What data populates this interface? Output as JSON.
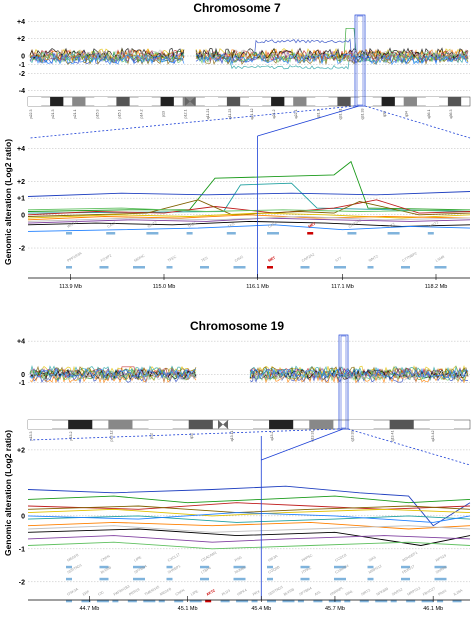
{
  "colors": {
    "highlight": "#1b3fd6",
    "grid": "#b8b8b8",
    "gene_track": "#7fb3dc",
    "target_gene": "#cc0000",
    "series_palette": [
      "#1a9a1a",
      "#e0c000",
      "#2040c0",
      "#c02020",
      "#20a0a0",
      "#ff8000",
      "#806000",
      "#8040a0",
      "#000000",
      "#60c060",
      "#c0c0c0",
      "#2080ff"
    ]
  },
  "chart_data": [
    {
      "type": "line",
      "title": "Chromosome 7",
      "panel": "whole-chromosome",
      "ylabel": "",
      "ylim": [
        -4.5,
        4.5
      ],
      "yticks": [
        "+4",
        "+2",
        "0",
        "-1",
        "-2",
        "-4"
      ],
      "ytick_values": [
        4,
        2,
        0,
        -1,
        -2,
        -4
      ],
      "grid": true,
      "centromere_gap": true,
      "cytobands": [
        "p22.3",
        "p21.3",
        "p21.1",
        "p15.3",
        "p15.1",
        "p14.2",
        "p13",
        "p12.1",
        "q11.21",
        "q11.23",
        "q21.12",
        "q21.2",
        "q22.1",
        "q31.1",
        "q31.31",
        "q31.33",
        "q33",
        "q34",
        "q36.1",
        "q36.3"
      ],
      "highlight_band": "q31.1"
    },
    {
      "type": "line",
      "title": "",
      "panel": "zoomed-region",
      "ylabel": "Genomic alteration (Log2 ratio)",
      "ylim": [
        -2.6,
        4.5
      ],
      "yticks": [
        "+4",
        "+2",
        "+1",
        "0",
        "-2"
      ],
      "ytick_values": [
        4,
        2,
        1,
        0,
        -2
      ],
      "x_unit": "Mb",
      "xlim": [
        113.4,
        118.6
      ],
      "x_ticks": [
        113.9,
        115.0,
        116.1,
        117.1,
        118.2
      ],
      "x_tick_labels": [
        "113.9 Mb",
        "115.0 Mb",
        "116.1 Mb",
        "117.1 Mb",
        "118.2 Mb"
      ],
      "highlight_x": 116.1,
      "target_gene": "MET",
      "series": [
        {
          "color": "#1a9a1a",
          "x": [
            113.4,
            114.6,
            115.3,
            115.6,
            116.3,
            117.0,
            117.2,
            117.4,
            118.6
          ],
          "values": [
            0.2,
            0.3,
            0.3,
            2.2,
            2.3,
            2.4,
            3.2,
            0.4,
            0.3
          ]
        },
        {
          "color": "#20a0a0",
          "x": [
            113.4,
            115.7,
            115.9,
            116.5,
            116.8,
            118.6
          ],
          "values": [
            0.1,
            0.2,
            1.8,
            1.9,
            0.4,
            0.2
          ]
        },
        {
          "color": "#2040c0",
          "x": [
            113.4,
            114.5,
            115.5,
            116.5,
            117.5,
            118.6
          ],
          "values": [
            1.1,
            1.3,
            1.2,
            1.3,
            1.2,
            1.4
          ]
        },
        {
          "color": "#c02020",
          "x": [
            113.4,
            114.2,
            115.0,
            115.6,
            116.3,
            117.0,
            117.5,
            118.0,
            118.6
          ],
          "values": [
            0.0,
            0.2,
            0.1,
            0.5,
            0.1,
            0.4,
            0.9,
            0.1,
            0.2
          ]
        },
        {
          "color": "#806000",
          "x": [
            113.4,
            114.8,
            115.4,
            115.8,
            116.6,
            117.0,
            117.3,
            118.0,
            118.6
          ],
          "values": [
            -0.1,
            0.1,
            0.9,
            0.0,
            0.2,
            0.1,
            0.8,
            0.0,
            0.1
          ]
        },
        {
          "color": "#e0c000",
          "x": [
            113.4,
            114.4,
            115.3,
            116.1,
            116.9,
            117.8,
            118.6
          ],
          "values": [
            -0.2,
            0.0,
            -0.1,
            0.1,
            0.0,
            -0.2,
            0.0
          ]
        },
        {
          "color": "#ff8000",
          "x": [
            113.4,
            114.3,
            115.2,
            116.0,
            116.8,
            117.6,
            118.6
          ],
          "values": [
            -0.3,
            -0.1,
            -0.2,
            0.0,
            -0.2,
            -0.1,
            -0.2
          ]
        },
        {
          "color": "#8040a0",
          "x": [
            113.4,
            114.6,
            115.5,
            116.2,
            117.0,
            117.9,
            118.6
          ],
          "values": [
            -0.5,
            -0.3,
            -0.4,
            -0.2,
            -0.3,
            -0.4,
            -0.3
          ]
        },
        {
          "color": "#000000",
          "x": [
            113.4,
            114.2,
            115.1,
            116.0,
            116.9,
            117.8,
            118.6
          ],
          "values": [
            -0.6,
            -0.5,
            -0.6,
            -0.4,
            -0.5,
            -0.7,
            -0.6
          ]
        },
        {
          "color": "#2080ff",
          "x": [
            113.4,
            114.5,
            115.4,
            116.3,
            117.1,
            117.9,
            118.6
          ],
          "values": [
            -1.0,
            -0.9,
            -0.8,
            -0.6,
            -0.9,
            -0.7,
            -0.8
          ]
        },
        {
          "color": "#60c060",
          "x": [
            113.4,
            114.5,
            115.5,
            116.4,
            117.3,
            118.6
          ],
          "values": [
            0.3,
            0.4,
            0.2,
            0.3,
            0.2,
            0.3
          ]
        },
        {
          "color": "#c0c0c0",
          "x": [
            113.4,
            114.6,
            115.6,
            116.6,
            117.6,
            118.6
          ],
          "values": [
            -0.4,
            -0.2,
            -0.3,
            -0.1,
            -0.3,
            -0.2
          ]
        }
      ],
      "genes_upper": [
        "WNT16",
        "CAV2",
        "WNT2",
        "TFEC",
        "TES",
        "CAV1",
        "MET",
        "CAPZA2",
        "ST7",
        "WNT2"
      ],
      "genes_lower": [
        "PPP1R3A",
        "FOXP2",
        "MDFIC",
        "TFEC",
        "TES",
        "CAV2",
        "MET",
        "CAPZA2",
        "ST7",
        "WNT2",
        "CTTNBP2",
        "LSM8"
      ]
    },
    {
      "type": "line",
      "title": "Chromosome 19",
      "panel": "whole-chromosome",
      "ylabel": "",
      "ylim": [
        -2.5,
        4.5
      ],
      "yticks": [
        "+4",
        "0",
        "-1"
      ],
      "ytick_values": [
        4,
        0,
        -1
      ],
      "grid": true,
      "centromere_gap": true,
      "cytobands": [
        "p13.3",
        "p13.2",
        "p13.12",
        "p12",
        "q12",
        "q13.11",
        "q13.2",
        "q13.31",
        "q13.33",
        "q13.41",
        "q13.42"
      ],
      "highlight_band": "q13.31"
    },
    {
      "type": "line",
      "title": "",
      "panel": "zoomed-region",
      "ylabel": "Genomic alteration (Log2 ratio)",
      "ylim": [
        -2.4,
        2.3
      ],
      "yticks": [
        "+2",
        "0",
        "-1",
        "-2"
      ],
      "ytick_values": [
        2,
        0,
        -1,
        -2
      ],
      "x_unit": "Mb",
      "xlim": [
        44.45,
        46.25
      ],
      "x_ticks": [
        44.7,
        45.1,
        45.4,
        45.7,
        46.1
      ],
      "x_tick_labels": [
        "44.7 Mb",
        "45.1 Mb",
        "45.4 Mb",
        "45.7 Mb",
        "46.1 Mb"
      ],
      "highlight_x": 45.4,
      "target_gene": "AKT2",
      "series": [
        {
          "color": "#1a9a1a",
          "x": [
            44.45,
            44.8,
            45.1,
            45.4,
            45.7,
            46.0,
            46.25
          ],
          "values": [
            0.5,
            0.6,
            0.4,
            0.5,
            0.6,
            0.4,
            0.5
          ]
        },
        {
          "color": "#2040c0",
          "x": [
            44.45,
            44.8,
            45.2,
            45.5,
            45.8,
            46.0,
            46.1,
            46.25
          ],
          "values": [
            0.8,
            0.7,
            0.8,
            0.9,
            0.7,
            0.6,
            -0.3,
            0.4
          ]
        },
        {
          "color": "#c02020",
          "x": [
            44.45,
            44.9,
            45.3,
            45.6,
            45.9,
            46.25
          ],
          "values": [
            0.3,
            0.2,
            0.4,
            0.3,
            0.2,
            0.3
          ]
        },
        {
          "color": "#e0c000",
          "x": [
            44.45,
            44.8,
            45.2,
            45.5,
            45.9,
            46.25
          ],
          "values": [
            0.1,
            0.2,
            0.0,
            0.1,
            0.2,
            0.1
          ]
        },
        {
          "color": "#20a0a0",
          "x": [
            44.45,
            44.9,
            45.3,
            45.7,
            46.0,
            46.25
          ],
          "values": [
            -0.1,
            0.0,
            -0.2,
            -0.1,
            0.0,
            -0.1
          ]
        },
        {
          "color": "#ff8000",
          "x": [
            44.45,
            44.8,
            45.2,
            45.6,
            46.0,
            46.25
          ],
          "values": [
            -0.3,
            -0.2,
            -0.3,
            -0.2,
            -0.4,
            -0.3
          ]
        },
        {
          "color": "#000000",
          "x": [
            44.45,
            44.9,
            45.3,
            45.7,
            46.05,
            46.25
          ],
          "values": [
            -0.5,
            -0.4,
            -0.6,
            -0.5,
            -0.9,
            -0.6
          ]
        },
        {
          "color": "#8040a0",
          "x": [
            44.45,
            44.8,
            45.2,
            45.5,
            45.9,
            46.25
          ],
          "values": [
            -0.7,
            -0.6,
            -0.8,
            -0.7,
            -0.6,
            -0.7
          ]
        },
        {
          "color": "#806000",
          "x": [
            44.45,
            44.9,
            45.3,
            45.6,
            46.0,
            46.25
          ],
          "values": [
            0.2,
            0.3,
            0.1,
            0.2,
            0.3,
            0.2
          ]
        },
        {
          "color": "#60c060",
          "x": [
            44.45,
            44.8,
            45.2,
            45.6,
            46.0,
            46.25
          ],
          "values": [
            -0.9,
            -0.8,
            -1.0,
            -0.9,
            -0.8,
            -0.9
          ]
        },
        {
          "color": "#2080ff",
          "x": [
            44.45,
            44.9,
            45.3,
            45.7,
            46.1,
            46.25
          ],
          "values": [
            0.0,
            -0.1,
            0.1,
            0.0,
            -0.2,
            0.0
          ]
        },
        {
          "color": "#c0c0c0",
          "x": [
            44.45,
            44.8,
            45.2,
            45.6,
            46.0,
            46.25
          ],
          "values": [
            -0.4,
            -0.3,
            -0.5,
            -0.4,
            -0.3,
            -0.4
          ]
        }
      ],
      "genes_top": [
        "MEGF8",
        "CNFN",
        "LIPE",
        "CXCL17",
        "CEACAM1",
        "PSG",
        "HIF3A",
        "PPP5C",
        "CCDC8",
        "SIX5",
        "ARHGEF1",
        "RPS19"
      ],
      "genes_mid": [
        "SERTAD1",
        "BLVRB",
        "SPTBN4",
        "SHKBP1",
        "LTBP4",
        "NUMBL",
        "COQ8B",
        "ITPKC",
        "C19orf54",
        "MRPS12",
        "FBXO17",
        "SNRPA"
      ],
      "genes_lower": [
        "GSK3A",
        "ERF",
        "CIC",
        "PAFAH1B3",
        "PRR19",
        "TMEM145",
        "MEGF8",
        "CNFN",
        "LIPE",
        "AKT2",
        "PLD3",
        "HIPK4",
        "PRX",
        "SERTAD3",
        "BLVRB",
        "SPTBN4",
        "AXL",
        "HNRNPL",
        "RINL",
        "SIRT2",
        "NFKBIB",
        "SARS2",
        "MRPS12",
        "FBXO27",
        "PAK4",
        "IL28A"
      ]
    }
  ]
}
